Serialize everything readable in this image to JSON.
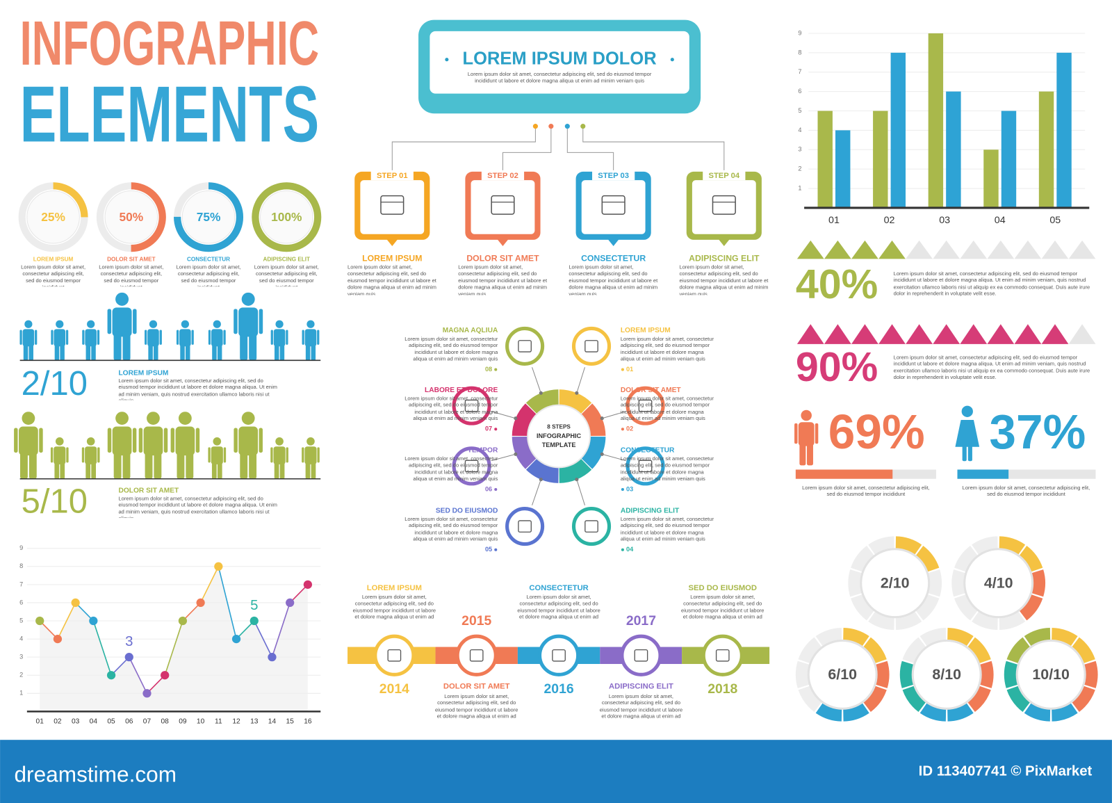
{
  "header": {
    "title_line1": "INFOGRAPHIC",
    "title_line2": "ELEMENTS"
  },
  "donuts": [
    {
      "value": 25,
      "label": "25%",
      "caption": "LOREM IPSUM",
      "color": "#f5c242",
      "text": "Lorem ipsum dolor sit amet, consectetur adipiscing elit, sed do eiusmod tempor incididunt"
    },
    {
      "value": 50,
      "label": "50%",
      "caption": "DOLOR SIT AMET",
      "color": "#f07a55",
      "text": "Lorem ipsum dolor sit amet, consectetur adipiscing elit, sed do eiusmod tempor incididunt"
    },
    {
      "value": 75,
      "label": "75%",
      "caption": "CONSECTETUR",
      "color": "#2fa3d3",
      "text": "Lorem ipsum dolor sit amet, consectetur adipiscing elit, sed do eiusmod tempor incididunt"
    },
    {
      "value": 100,
      "label": "100%",
      "caption": "ADIPISCING ELIT",
      "color": "#a8b84a",
      "text": "Lorem ipsum dolor sit amet, consectetur adipiscing elit, sed do eiusmod tempor incididunt"
    }
  ],
  "people": [
    {
      "filled": 2,
      "total": 10,
      "label": "2/10",
      "highlighted": [
        3,
        7
      ],
      "color": "#2fa3d3",
      "title": "LOREM IPSUM",
      "text": "Lorem ipsum dolor sit amet, consectetur adipiscing elit, sed do eiusmod tempor incididunt ut labore et dolore magna aliqua. Ut enim ad minim veniam, quis nostrud exercitation ullamco laboris nisi ut aliquip."
    },
    {
      "filled": 5,
      "total": 10,
      "label": "5/10",
      "highlighted": [
        0,
        3,
        4,
        5,
        7
      ],
      "color": "#a8b84a",
      "title": "DOLOR SIT AMET",
      "text": "Lorem ipsum dolor sit amet, consectetur adipiscing elit, sed do eiusmod tempor incididunt ut labore et dolore magna aliqua. Ut enim ad minim veniam, quis nostrud exercitation ullamco laboris nisi ut aliquip."
    }
  ],
  "chart_data": [
    {
      "type": "bar",
      "categories": [
        "01",
        "02",
        "03",
        "04",
        "05"
      ],
      "series": [
        {
          "color": "#a9b84b",
          "values": [
            5,
            5,
            9,
            3,
            6
          ]
        },
        {
          "color": "#2ea3d5",
          "values": [
            4,
            8,
            6,
            5,
            8
          ]
        }
      ],
      "ylim": [
        0,
        9
      ],
      "yticks": [
        1,
        2,
        3,
        4,
        5,
        6,
        7,
        8,
        9
      ],
      "grid": true
    },
    {
      "type": "line",
      "categories": [
        "01",
        "02",
        "03",
        "04",
        "05",
        "06",
        "07",
        "08",
        "09",
        "10",
        "11",
        "12",
        "13",
        "14",
        "15",
        "16"
      ],
      "values": [
        5,
        4,
        6,
        5,
        2,
        3,
        1,
        2,
        5,
        6,
        8,
        4,
        5,
        3,
        6,
        7
      ],
      "value_labels": [
        null,
        null,
        null,
        null,
        null,
        "3",
        null,
        null,
        null,
        null,
        null,
        null,
        "5",
        null,
        null,
        null
      ],
      "point_colors": [
        "#a8b84a",
        "#f07a55",
        "#f5c242",
        "#2fa3d3",
        "#2bb3a3",
        "#6a6ed0",
        "#8a6cc8",
        "#d4336d",
        "#a8b84a",
        "#f07a55",
        "#f5c242",
        "#2fa3d3",
        "#2bb3a3",
        "#6a6ed0",
        "#8a6cc8",
        "#d4336d"
      ],
      "ylim": [
        0,
        9
      ],
      "yticks": [
        1,
        2,
        3,
        4,
        5,
        6,
        7,
        8,
        9
      ],
      "grid": true
    }
  ],
  "org": {
    "title": "LOREM IPSUM DOLOR",
    "text": "Lorem ipsum dolor sit amet, consectetur adipiscing elit, sed do eiusmod tempor incididunt ut labore et dolore magna aliqua ut enim ad minim veniam quis",
    "steps": [
      {
        "step": "STEP 01",
        "title": "LOREM IPSUM",
        "color": "#f5a623",
        "text": "Lorem ipsum dolor sit amet, consectetur adipiscing elit, sed do eiusmod tempor incididunt ut labore et dolore magna aliqua ut enim ad minim veniam quis"
      },
      {
        "step": "STEP 02",
        "title": "DOLOR SIT AMET",
        "color": "#f07a55",
        "text": "Lorem ipsum dolor sit amet, consectetur adipiscing elit, sed do eiusmod tempor incididunt ut labore et dolore magna aliqua ut enim ad minim veniam quis"
      },
      {
        "step": "STEP 03",
        "title": "CONSECTETUR",
        "color": "#2fa3d3",
        "text": "Lorem ipsum dolor sit amet, consectetur adipiscing elit, sed do eiusmod tempor incididunt ut labore et dolore magna aliqua ut enim ad minim veniam quis"
      },
      {
        "step": "STEP 04",
        "title": "ADIPISCING ELIT",
        "color": "#a8b84a",
        "text": "Lorem ipsum dolor sit amet, consectetur adipiscing elit, sed do eiusmod tempor incididunt ut labore et dolore magna aliqua ut enim ad minim veniam quis"
      }
    ]
  },
  "cycle": {
    "center": [
      "8 STEPS",
      "INFOGRAPHIC",
      "TEMPLATE"
    ],
    "items": [
      {
        "num": "01",
        "title": "LOREM IPSUM",
        "color": "#f5c242",
        "text": "Lorem ipsum dolor sit amet, consectetur adipiscing elit, sed do eiusmod tempor incididunt ut labore et dolore magna aliqua ut enim ad minim veniam quis"
      },
      {
        "num": "02",
        "title": "DOLOR SIT AMET",
        "color": "#f07a55",
        "text": "Lorem ipsum dolor sit amet, consectetur adipiscing elit, sed do eiusmod tempor incididunt ut labore et dolore magna aliqua ut enim ad minim veniam quis"
      },
      {
        "num": "03",
        "title": "CONSECTETUR",
        "color": "#2fa3d3",
        "text": "Lorem ipsum dolor sit amet, consectetur adipiscing elit, sed do eiusmod tempor incididunt ut labore et dolore magna aliqua ut enim ad minim veniam quis"
      },
      {
        "num": "04",
        "title": "ADIPISCING ELIT",
        "color": "#2bb3a3",
        "text": "Lorem ipsum dolor sit amet, consectetur adipiscing elit, sed do eiusmod tempor incididunt ut labore et dolore magna aliqua ut enim ad minim veniam quis"
      },
      {
        "num": "05",
        "title": "SED DO EIUSMOD",
        "color": "#5a74d0",
        "text": "Lorem ipsum dolor sit amet, consectetur adipiscing elit, sed do eiusmod tempor incididunt ut labore et dolore magna aliqua ut enim ad minim veniam quis"
      },
      {
        "num": "06",
        "title": "TEMPOR",
        "color": "#8a6cc8",
        "text": "Lorem ipsum dolor sit amet, consectetur adipiscing elit, sed do eiusmod tempor incididunt ut labore et dolore magna aliqua ut enim ad minim veniam quis"
      },
      {
        "num": "07",
        "title": "LABORE ET DOLORE",
        "color": "#d4336d",
        "text": "Lorem ipsum dolor sit amet, consectetur adipiscing elit, sed do eiusmod tempor incididunt ut labore et dolore magna aliqua ut enim ad minim veniam quis"
      },
      {
        "num": "08",
        "title": "MAGNA AQLIUA",
        "color": "#a8b84a",
        "text": "Lorem ipsum dolor sit amet, consectetur adipiscing elit, sed do eiusmod tempor incididunt ut labore et dolore magna aliqua ut enim ad minim veniam quis"
      }
    ]
  },
  "timeline": {
    "items": [
      {
        "year": "2014",
        "title": "LOREM IPSUM",
        "color": "#f5c242",
        "text": "Lorem ipsum dolor sit amet, consectetur adipiscing elit, sed do eiusmod tempor incididunt ut labore et dolore magna aliqua ut enim ad"
      },
      {
        "year": "2015",
        "title": "DOLOR SIT AMET",
        "color": "#f07a55",
        "text": "Lorem ipsum dolor sit amet, consectetur adipiscing elit, sed do eiusmod tempor incididunt ut labore et dolore magna aliqua ut enim ad"
      },
      {
        "year": "2016",
        "title": "CONSECTETUR",
        "color": "#2fa3d3",
        "text": "Lorem ipsum dolor sit amet, consectetur adipiscing elit, sed do eiusmod tempor incididunt ut labore et dolore magna aliqua ut enim ad"
      },
      {
        "year": "2017",
        "title": "ADIPISCING ELIT",
        "color": "#8a6cc8",
        "text": "Lorem ipsum dolor sit amet, consectetur adipiscing elit, sed do eiusmod tempor incididunt ut labore et dolore magna aliqua ut enim ad"
      },
      {
        "year": "2018",
        "title": "SED DO EIUSMOD",
        "color": "#a8b84a",
        "text": "Lorem ipsum dolor sit amet, consectetur adipiscing elit, sed do eiusmod tempor incididunt ut labore et dolore magna aliqua ut enim ad"
      }
    ]
  },
  "triangles": [
    {
      "percent": 40,
      "label": "40%",
      "filled": 4,
      "total": 11,
      "color": "#a8b84a",
      "text": "Lorem ipsum dolor sit amet, consectetur adipiscing elit, sed do eiusmod tempor incididunt ut labore et dolore magna aliqua. Ut enim ad minim veniam, quis nostrud exercitation ullamco laboris nisi ut aliquip ex ea commodo consequat. Duis aute irure dolor in reprehenderit in voluptate velit esse."
    },
    {
      "percent": 90,
      "label": "90%",
      "filled": 10,
      "total": 11,
      "color": "#d63c77",
      "text": "Lorem ipsum dolor sit amet, consectetur adipiscing elit, sed do eiusmod tempor incididunt ut labore et dolore magna aliqua. Ut enim ad minim veniam, quis nostrud exercitation ullamco laboris nisi ut aliquip ex ea commodo consequat. Duis aute irure dolor in reprehenderit in voluptate velit esse."
    }
  ],
  "gender": [
    {
      "percent": 69,
      "label": "69%",
      "color": "#f07a55",
      "text": "Lorem ipsum dolor sit amet, consectetur adipiscing elit, sed do eiusmod tempor incididunt"
    },
    {
      "percent": 37,
      "label": "37%",
      "color": "#2fa3d3",
      "text": "Lorem ipsum dolor sit amet, consectetur adipiscing elit, sed do eiusmod tempor incididunt"
    }
  ],
  "rings": {
    "segment_colors": [
      "#f5c242",
      "#f5c242",
      "#f07a55",
      "#f07a55",
      "#2fa3d3",
      "#2fa3d3",
      "#2bb3a3",
      "#2bb3a3",
      "#a8b84a",
      "#a8b84a"
    ],
    "items": [
      {
        "value": 2,
        "total": 10,
        "label": "2/10"
      },
      {
        "value": 4,
        "total": 10,
        "label": "4/10"
      },
      {
        "value": 6,
        "total": 10,
        "label": "6/10"
      },
      {
        "value": 8,
        "total": 10,
        "label": "8/10"
      },
      {
        "value": 10,
        "total": 10,
        "label": "10/10"
      }
    ]
  },
  "footer": {
    "site": "dreamstime.com",
    "id": "ID 113407741 © PixMarket"
  }
}
